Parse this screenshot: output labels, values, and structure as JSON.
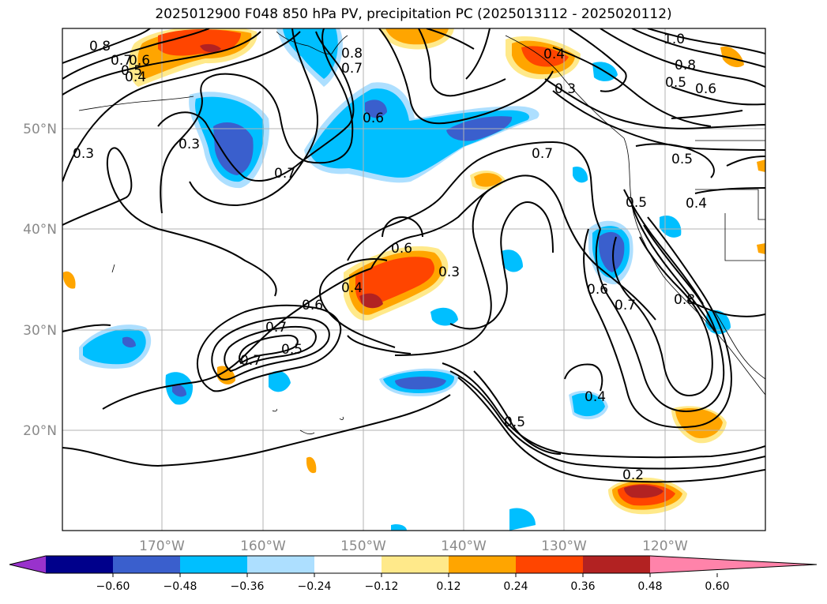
{
  "title": "2025012900 F048 850 hPa PV, precipitation PC (2025013112 - 2025020112)",
  "map": {
    "lat_labels": [
      "50°N",
      "40°N",
      "30°N",
      "20°N"
    ],
    "lon_labels": [
      "170°W",
      "160°W",
      "150°W",
      "140°W",
      "130°W",
      "120°W"
    ],
    "contour_labels": [
      "0.8",
      "0.7",
      "0.6",
      "0.5",
      "0.4",
      "0.3",
      "0.3",
      "0.7",
      "0.6",
      "0.8",
      "0.7",
      "0.4",
      "1.0",
      "0.8",
      "0.5",
      "0.6",
      "0.3",
      "0.7",
      "0.5",
      "0.4",
      "0.5",
      "0.6",
      "0.4",
      "0.3",
      "0.6",
      "0.7",
      "0.5",
      "0.7",
      "0.6",
      "0.7",
      "0.8",
      "0.4",
      "0.5",
      "0.2"
    ]
  },
  "colorbar": {
    "ticks": [
      "−0.60",
      "−0.48",
      "−0.36",
      "−0.24",
      "−0.12",
      "0.12",
      "0.24",
      "0.36",
      "0.48",
      "0.60"
    ],
    "colors": [
      "#9932CC",
      "#00008B",
      "#3A5FCD",
      "#00BFFF",
      "#ADDFFF",
      "#FFFFFF",
      "#FFE98A",
      "#FFA500",
      "#FF4500",
      "#B22222",
      "#FF83AA"
    ]
  }
}
